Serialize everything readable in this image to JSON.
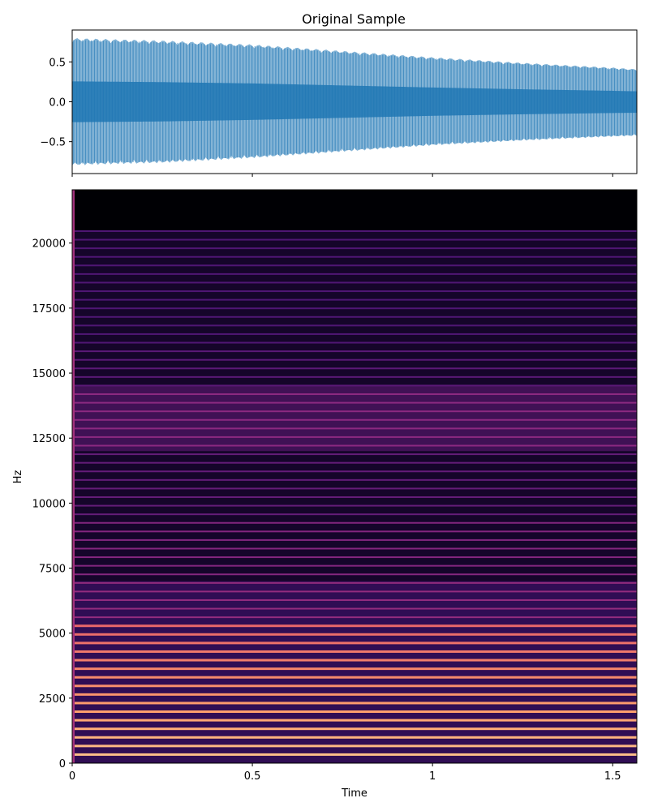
{
  "chart_data": [
    {
      "type": "area",
      "title": "Original Sample",
      "xlabel": "",
      "ylabel": "",
      "xlim": [
        0,
        1.567
      ],
      "ylim": [
        -0.9,
        0.9
      ],
      "x_ticks": [
        0,
        0.5,
        1,
        1.5
      ],
      "x_tick_labels": [
        "",
        "",
        "",
        ""
      ],
      "y_ticks": [
        0.5,
        0.0,
        -0.5
      ],
      "y_tick_labels": [
        "0.5",
        "0.0",
        "−0.5"
      ],
      "envelope": {
        "x": [
          0,
          0.25,
          0.5,
          0.75,
          1.0,
          1.25,
          1.5,
          1.567
        ],
        "upper": [
          0.8,
          0.77,
          0.72,
          0.64,
          0.56,
          0.49,
          0.43,
          0.41
        ],
        "lower": [
          -0.8,
          -0.77,
          -0.71,
          -0.63,
          -0.55,
          -0.49,
          -0.44,
          -0.43
        ]
      },
      "color": "#1f77b4"
    },
    {
      "type": "heatmap",
      "title": "",
      "xlabel": "Time",
      "ylabel": "Hz",
      "xlim": [
        0,
        1.567
      ],
      "ylim": [
        0,
        22050
      ],
      "x_ticks": [
        0,
        0.5,
        1,
        1.5
      ],
      "x_tick_labels": [
        "0",
        "0.5",
        "1",
        "1.5"
      ],
      "y_ticks": [
        0,
        2500,
        5000,
        7500,
        10000,
        12500,
        15000,
        17500,
        20000
      ],
      "y_tick_labels": [
        "0",
        "2500",
        "5000",
        "7500",
        "10000",
        "12500",
        "15000",
        "17500",
        "20000"
      ],
      "harmonic_spacing_hz": 330,
      "colormap": [
        "#000004",
        "#3b0f70",
        "#8c2981",
        "#de4968",
        "#fe9f6d",
        "#fcfdbf"
      ]
    }
  ]
}
